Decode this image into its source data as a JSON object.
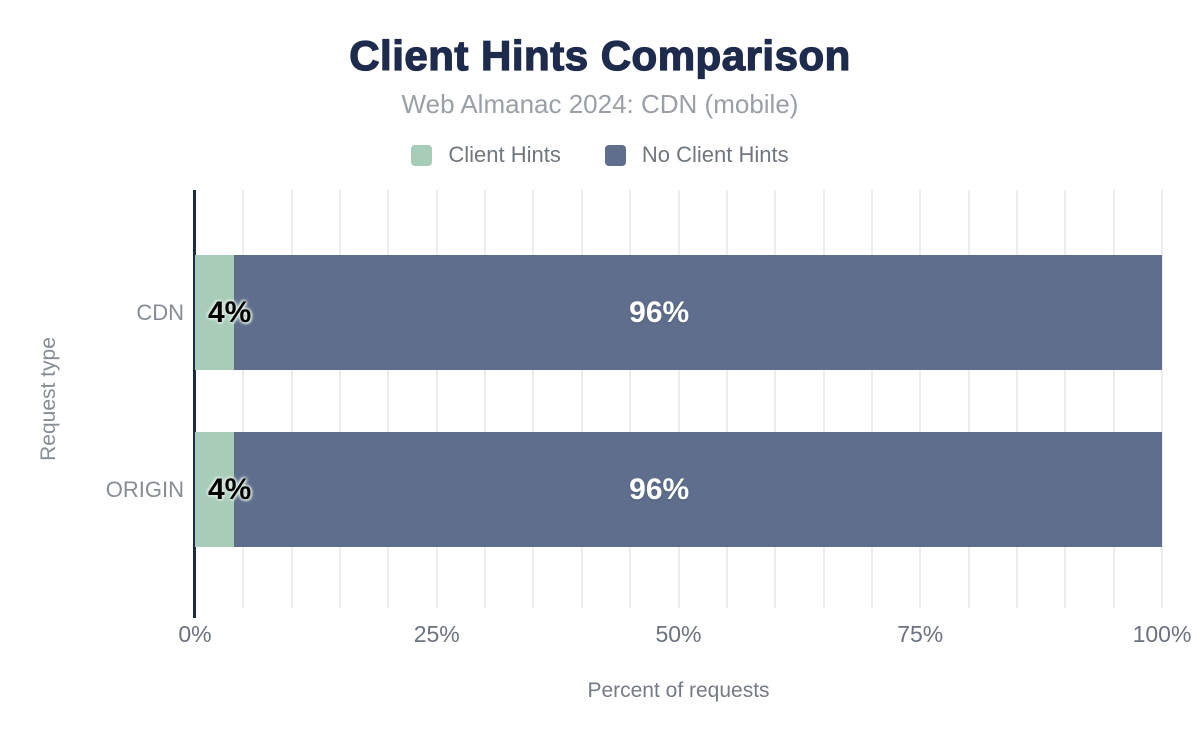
{
  "colors": {
    "title": "#1e2b4d",
    "subtitle": "#9aa0a7",
    "axis_line": "#1b2b4b",
    "gridline": "#ededf0",
    "tick_label": "#6b7280",
    "category_label": "#878d96",
    "axis_title": "#757c86",
    "bar_label_dark": "#000000",
    "bar_label_light": "#ffffff",
    "series_green": "#a7ccb8",
    "series_slate": "#5f6e8c"
  },
  "chart_data": {
    "type": "bar",
    "orientation": "horizontal",
    "stacked": true,
    "title": "Client Hints Comparison",
    "subtitle": "Web Almanac 2024: CDN (mobile)",
    "categories": [
      "CDN",
      "ORIGIN"
    ],
    "series": [
      {
        "name": "Client Hints",
        "color": "#a7ccb8",
        "values": [
          4,
          4
        ],
        "data_labels": [
          "4%",
          "4%"
        ]
      },
      {
        "name": "No Client Hints",
        "color": "#5f6e8c",
        "values": [
          96,
          96
        ],
        "data_labels": [
          "96%",
          "96%"
        ]
      }
    ],
    "xlabel": "Percent of requests",
    "ylabel": "Request type",
    "xlim": [
      0,
      100
    ],
    "xticks": [
      {
        "value": 0,
        "label": "0%"
      },
      {
        "value": 25,
        "label": "25%"
      },
      {
        "value": 50,
        "label": "50%"
      },
      {
        "value": 75,
        "label": "75%"
      },
      {
        "value": 100,
        "label": "100%"
      }
    ],
    "grid": {
      "vertical": true,
      "minor_interval_pct": 5
    },
    "legend_position": "top"
  }
}
